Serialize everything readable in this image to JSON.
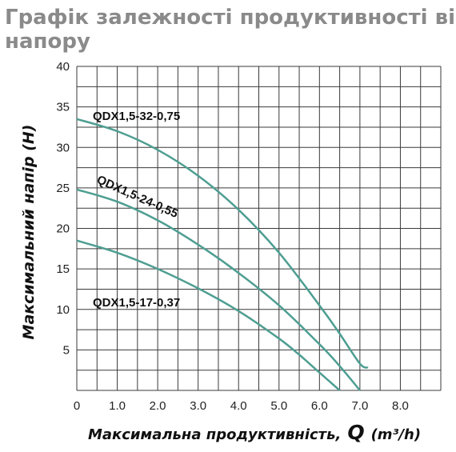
{
  "chart_data": {
    "type": "line",
    "title_lines": [
      "Графік залежності продуктивності від",
      "напору"
    ],
    "xlabel": "Максимальна продуктивність,",
    "xlabel_symbol": "Q",
    "xlabel_unit": "(m³/h)",
    "ylabel": "Максимальний напір (Н)",
    "xlim": [
      0,
      9
    ],
    "ylim": [
      0,
      40
    ],
    "x_ticks": [
      "0",
      "1.0",
      "2.0",
      "3.0",
      "4.0",
      "5.0",
      "6.0",
      "7.0",
      "8.0"
    ],
    "y_ticks": [
      "5",
      "10",
      "15",
      "20",
      "25",
      "30",
      "35",
      "40"
    ],
    "grid": true,
    "series": [
      {
        "name": "QDX1,5-32-0,75",
        "color": "#4e9e92",
        "x": [
          0,
          1.0,
          2.0,
          3.0,
          4.0,
          5.0,
          6.0,
          6.5,
          7.0,
          7.2
        ],
        "y": [
          33.5,
          32.0,
          29.7,
          26.5,
          22.3,
          17.0,
          10.5,
          7.0,
          3.3,
          2.8
        ]
      },
      {
        "name": "QDX1,5-24-0,55",
        "color": "#4e9e92",
        "x": [
          0,
          1.0,
          2.0,
          3.0,
          4.0,
          5.0,
          6.0,
          6.5,
          7.0
        ],
        "y": [
          24.8,
          23.3,
          21.0,
          18.0,
          14.5,
          10.5,
          5.7,
          3.0,
          0.0
        ]
      },
      {
        "name": "QDX1,5-17-0,37",
        "color": "#4e9e92",
        "x": [
          0,
          1.0,
          2.0,
          3.0,
          4.0,
          5.0,
          5.5,
          6.0,
          6.5
        ],
        "y": [
          18.5,
          17.0,
          15.0,
          12.6,
          9.8,
          6.4,
          4.4,
          2.2,
          0.0
        ]
      }
    ]
  }
}
